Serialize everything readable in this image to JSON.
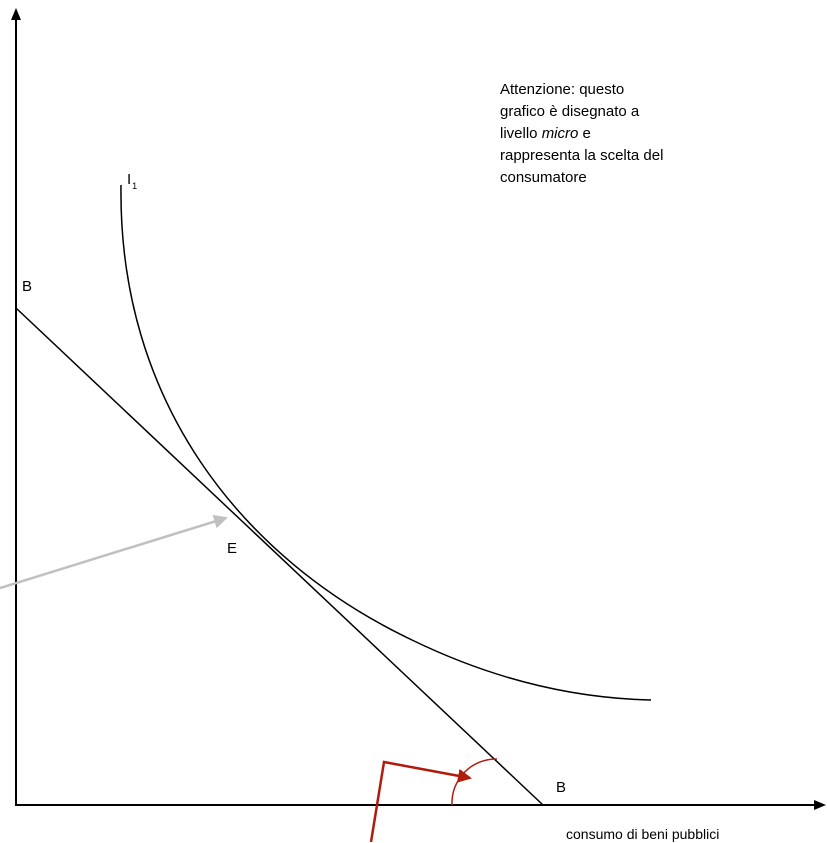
{
  "colors": {
    "axis": "#000000",
    "curve": "#000000",
    "budget_line": "#000000",
    "pointer_arrow": "#c0c0c0",
    "angle_marker": "#b01c0c"
  },
  "labels": {
    "x_axis": "consumo di beni pubblici",
    "indifference_curve": "I",
    "indifference_curve_subscript": "1",
    "budget_intercept_y": "B",
    "budget_intercept_x": "B",
    "equilibrium": "E"
  },
  "note": {
    "line1": "Attenzione: questo",
    "line2": "grafico è disegnato a",
    "line3_prefix": "livello ",
    "line3_emphasis": "micro",
    "line3_suffix": " e",
    "line4": "rappresenta la scelta del",
    "line5": "consumatore"
  },
  "icons": {
    "y_axis_arrowhead": "arrow-up-icon",
    "x_axis_arrowhead": "arrow-right-icon",
    "pointer_arrowhead": "arrowhead-icon",
    "angle_pointer_arrowhead": "arrowhead-icon"
  }
}
